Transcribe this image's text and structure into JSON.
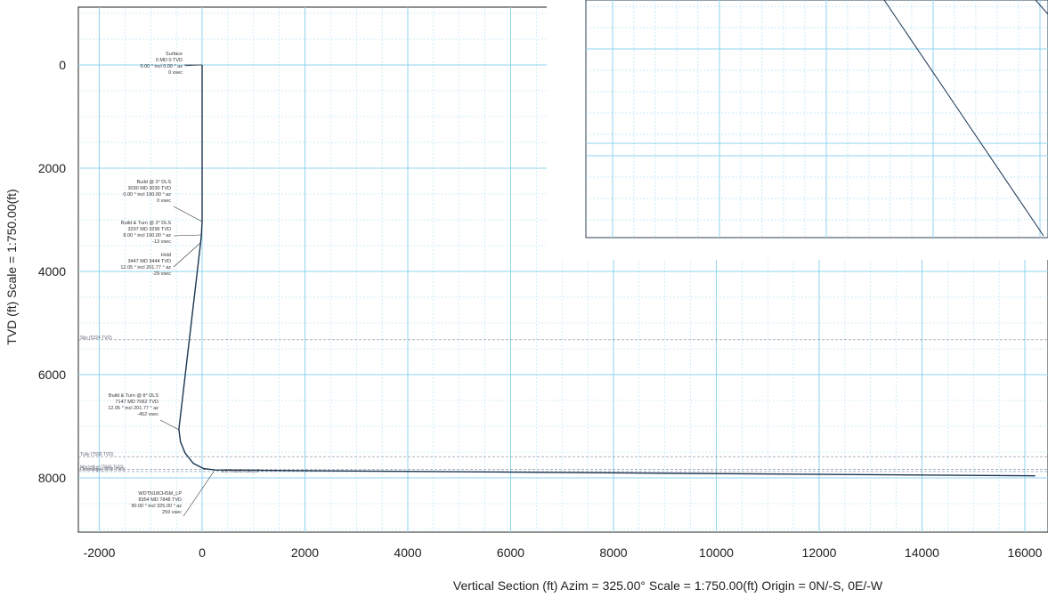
{
  "chart_data": {
    "type": "line",
    "xlabel": "Vertical Section (ft) Azim = 325.00° Scale = 1:750.00(ft) Origin = 0N/-S, 0E/-W",
    "ylabel": "TVD (ft) Scale = 1:750.00(ft)",
    "xlim": [
      -2400,
      16200
    ],
    "ylim": [
      9100,
      -1050
    ],
    "y_inverted": true,
    "grid": true,
    "x_ticks": [
      "-2000",
      "0",
      "2000",
      "4000",
      "6000",
      "8000",
      "10000",
      "12000",
      "14000",
      "16000"
    ],
    "y_ticks": [
      "0",
      "2000",
      "4000",
      "6000",
      "8000"
    ],
    "x_tick_values": [
      -2000,
      0,
      2000,
      4000,
      6000,
      8000,
      10000,
      12000,
      14000,
      16000
    ],
    "y_tick_values": [
      0,
      2000,
      4000,
      6000,
      8000
    ],
    "series": [
      {
        "points": [
          [
            0,
            0
          ],
          [
            0,
            3030
          ],
          [
            -13,
            3296
          ],
          [
            -29,
            3444
          ],
          [
            -452,
            7062
          ],
          [
            -420,
            7300
          ],
          [
            -330,
            7520
          ],
          [
            -170,
            7720
          ],
          [
            30,
            7820
          ],
          [
            259,
            7848
          ],
          [
            16200,
            7960
          ]
        ]
      }
    ],
    "annotations": [
      {
        "lines": [
          "Surface",
          "0 MD 0 TVD",
          "0.00 ° incl 0.00 ° az",
          "0 vsec"
        ],
        "at": [
          0,
          0
        ]
      },
      {
        "lines": [
          "Build @ 3° DLS",
          "3030 MD 3030 TVD",
          "0.00 ° incl 190.00 ° az",
          "0 vsec"
        ],
        "at": [
          0,
          3030
        ]
      },
      {
        "lines": [
          "Build & Turn @ 3° DLS",
          "3297 MD 3296 TVD",
          "8.00 ° incl 190.00 ° az",
          "-13 vsec"
        ],
        "at": [
          -13,
          3296
        ]
      },
      {
        "lines": [
          "Hold",
          "3447 MD 3444 TVD",
          "12.05 ° incl 201.77 ° az",
          "-29 vsec"
        ],
        "at": [
          -29,
          3444
        ]
      },
      {
        "lines": [
          "Build & Turn @ 8° DLS",
          "7147 MD 7062 TVD",
          "12.05 ° incl 201.77 ° az",
          "-452 vsec"
        ],
        "at": [
          -452,
          7062
        ]
      },
      {
        "lines": [
          "WDTN18CHSM_LP",
          "8354 MD 7848 TVD",
          "90.00 ° incl 325.00 ° az",
          "259 vsec"
        ],
        "at": [
          259,
          7848
        ]
      }
    ],
    "formations": [
      {
        "label": "Sby (5324 TVD)",
        "tvd": 5324
      },
      {
        "label": "Tully (7590 TVD)",
        "tvd": 7590
      },
      {
        "label": "Marcellus (7840 TVD)",
        "tvd": 7840
      },
      {
        "label": "Onondaga (7878 TVD)",
        "tvd": 7878
      }
    ],
    "target_label": "WDTN18CHSM_LP",
    "colors": {
      "grid": "#8fd3f0",
      "curve": "#1c3550",
      "axis": "#222222"
    }
  }
}
